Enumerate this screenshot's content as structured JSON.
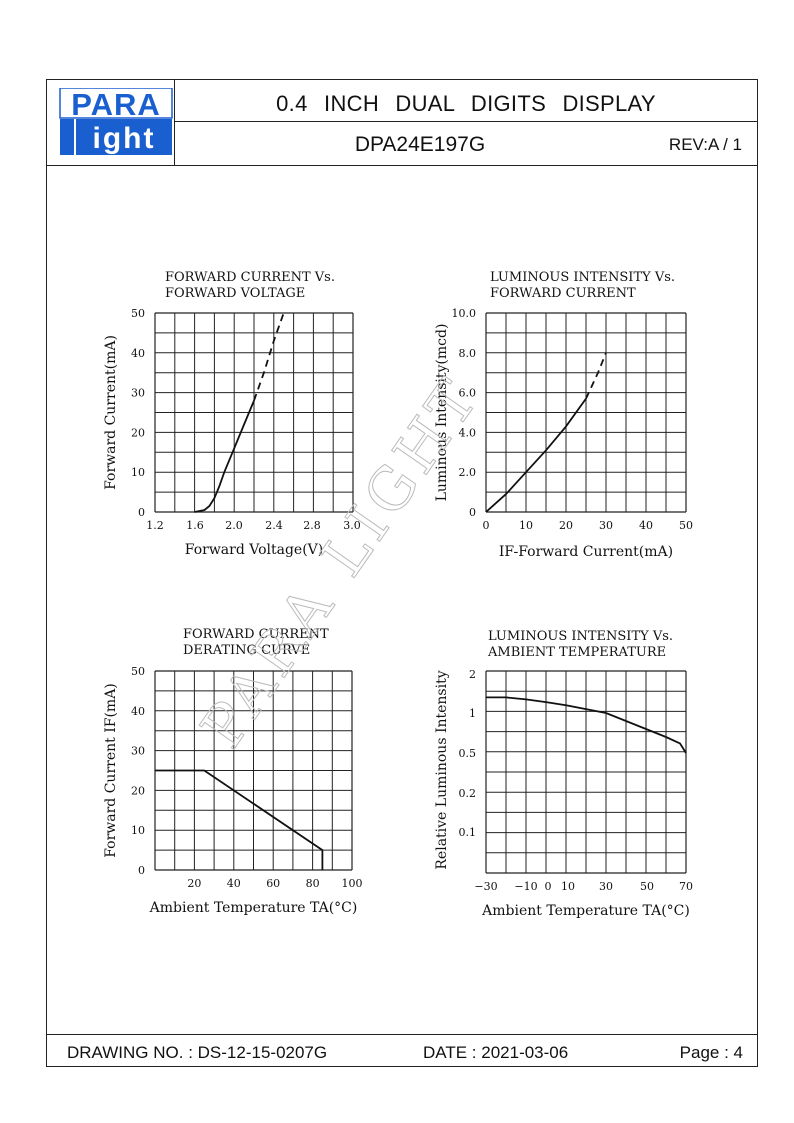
{
  "header": {
    "logo_top": "PARA",
    "logo_bottom": "ight",
    "logo_color": "#1a5fd0",
    "title": "0.4 INCH DUAL DIGITS DISPLAY",
    "model": "DPA24E197G",
    "revision": "REV:A / 1"
  },
  "footer": {
    "drawing_no": "DRAWING NO. : DS-12-15-0207G",
    "date": "DATE : 2021-03-06",
    "page": "Page : 4"
  },
  "watermark": "PARA LIGHT",
  "chart_data": [
    {
      "id": "c1",
      "type": "line",
      "title": [
        "FORWARD CURRENT Vs.",
        "FORWARD VOLTAGE"
      ],
      "xlabel": "Forward Voltage(V)",
      "ylabel": "Forward Current(mA)",
      "x_ticks": [
        1.2,
        1.6,
        2.0,
        2.4,
        2.8,
        3.0
      ],
      "x_tick_labels": [
        "1.2",
        "1.6",
        "2.0",
        "2.4",
        "2.8",
        "3.0"
      ],
      "y_ticks": [
        0,
        10,
        20,
        30,
        40,
        50
      ],
      "y_tick_labels": [
        "0",
        "10",
        "20",
        "30",
        "40",
        "50"
      ],
      "xlim": [
        1.2,
        3.2
      ],
      "ylim": [
        0,
        50
      ],
      "grid": true,
      "series": [
        {
          "style": "solid",
          "x": [
            1.6,
            1.7,
            1.75,
            1.8,
            1.85,
            1.9,
            2.0,
            2.1,
            2.2
          ],
          "y": [
            0,
            0.5,
            1.5,
            3.5,
            6.5,
            10,
            16,
            22,
            28
          ]
        },
        {
          "style": "dashed",
          "x": [
            2.2,
            2.3,
            2.4,
            2.5
          ],
          "y": [
            28,
            35,
            43,
            50
          ]
        }
      ]
    },
    {
      "id": "c2",
      "type": "line",
      "title": [
        "LUMINOUS INTENSITY Vs.",
        "FORWARD CURRENT"
      ],
      "xlabel": "IF-Forward Current(mA)",
      "ylabel": "Luminous Intensity(mcd)",
      "x_ticks": [
        0,
        10,
        20,
        30,
        40,
        50
      ],
      "x_tick_labels": [
        "0",
        "10",
        "20",
        "30",
        "40",
        "50"
      ],
      "y_ticks": [
        0,
        2,
        4,
        6,
        8,
        10
      ],
      "y_tick_labels": [
        "0",
        "2.0",
        "4.0",
        "6.0",
        "8.0",
        "10.0"
      ],
      "xlim": [
        0,
        50
      ],
      "ylim": [
        0,
        10
      ],
      "grid": true,
      "series": [
        {
          "style": "solid",
          "x": [
            0,
            5,
            10,
            15,
            20,
            25
          ],
          "y": [
            0,
            0.9,
            2.0,
            3.1,
            4.3,
            5.7
          ]
        },
        {
          "style": "dashed",
          "x": [
            25,
            28,
            30
          ],
          "y": [
            5.7,
            7.0,
            8.0
          ]
        }
      ]
    },
    {
      "id": "c3",
      "type": "line",
      "title": [
        "FORWARD CURRENT",
        "DERATING CURVE"
      ],
      "xlabel": "Ambient Temperature TA(°C)",
      "ylabel": "Forward Current IF(mA)",
      "x_ticks": [
        20,
        40,
        60,
        80,
        100
      ],
      "x_tick_labels": [
        "20",
        "40",
        "60",
        "80",
        "100"
      ],
      "y_ticks": [
        0,
        10,
        20,
        30,
        40,
        50
      ],
      "y_tick_labels": [
        "0",
        "10",
        "20",
        "30",
        "40",
        "50"
      ],
      "xlim": [
        0,
        100
      ],
      "ylim": [
        0,
        50
      ],
      "grid": true,
      "series": [
        {
          "style": "solid",
          "x": [
            0,
            25,
            85,
            85
          ],
          "y": [
            25,
            25,
            5,
            0
          ]
        }
      ]
    },
    {
      "id": "c4",
      "type": "line",
      "title": [
        "LUMINOUS INTENSITY Vs.",
        "AMBIENT TEMPERATURE"
      ],
      "xlabel": "Ambient Temperature TA(°C)",
      "ylabel": "Relative Luminous Intensity",
      "x_ticks": [
        -30,
        -10,
        0,
        10,
        30,
        50,
        70
      ],
      "x_tick_labels": [
        "-30",
        "-10",
        "0",
        "10",
        "30",
        "50",
        "70"
      ],
      "y_ticks": [
        0.1,
        0.2,
        0.5,
        1,
        2
      ],
      "y_tick_labels": [
        "0.1",
        "0.2",
        "0.5",
        "1",
        "2"
      ],
      "xlim": [
        -30,
        70
      ],
      "ylim": [
        0,
        2
      ],
      "grid": true,
      "series": [
        {
          "style": "solid",
          "x": [
            -30,
            -20,
            -10,
            0,
            10,
            20,
            30,
            40,
            50,
            60,
            67,
            70
          ],
          "y": [
            1.4,
            1.4,
            1.35,
            1.28,
            1.2,
            1.1,
            1.0,
            0.9,
            0.8,
            0.7,
            0.62,
            0.5
          ]
        }
      ]
    }
  ]
}
